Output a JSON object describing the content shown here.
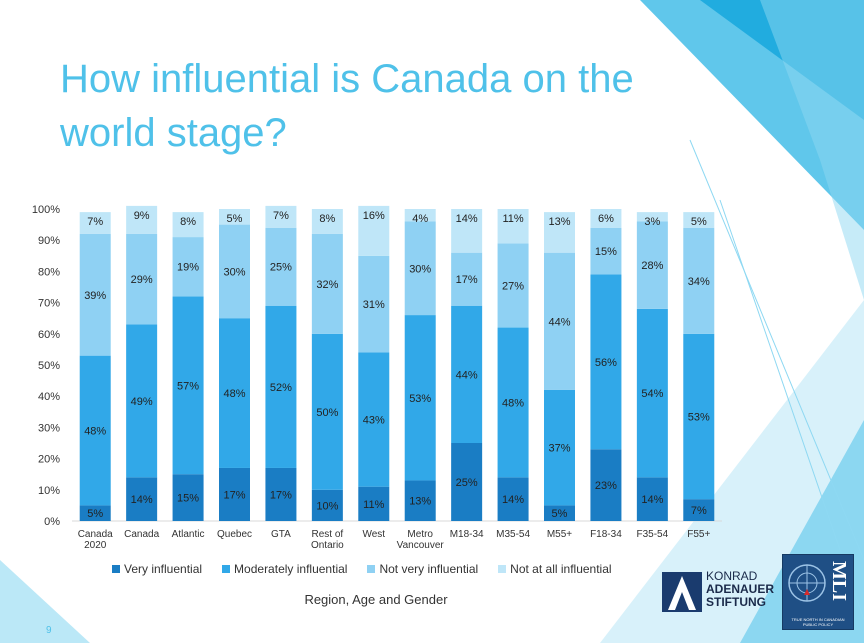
{
  "slide": {
    "title": "How influential is Canada on the world stage?",
    "page_number": "9",
    "x_axis_title": "Region, Age and Gender"
  },
  "logos": {
    "kas_line1": "KONRAD",
    "kas_line2": "ADENAUER",
    "kas_line3": "STIFTUNG",
    "mli_text": "MLI",
    "mli_tagline": "TRUE NORTH IN CANADIAN PUBLIC POLICY"
  },
  "colors": {
    "very": "#1a7dc4",
    "moderately": "#31a8e8",
    "not_very": "#8fd1f3",
    "not_at_all": "#bfe6f8",
    "title": "#4fc1e9"
  },
  "chart_data": {
    "type": "bar",
    "stacked": true,
    "categories": [
      "Canada 2020",
      "Canada",
      "Atlantic",
      "Quebec",
      "GTA",
      "Rest of Ontario",
      "West",
      "Metro Vancouver",
      "M18-34",
      "M35-54",
      "M55+",
      "F18-34",
      "F35-54",
      "F55+"
    ],
    "category_lines": [
      [
        "Canada",
        "2020"
      ],
      [
        "Canada"
      ],
      [
        "Atlantic"
      ],
      [
        "Quebec"
      ],
      [
        "GTA"
      ],
      [
        "Rest of",
        "Ontario"
      ],
      [
        "West"
      ],
      [
        "Metro",
        "Vancouver"
      ],
      [
        "M18-34"
      ],
      [
        "M35-54"
      ],
      [
        "M55+"
      ],
      [
        "F18-34"
      ],
      [
        "F35-54"
      ],
      [
        "F55+"
      ]
    ],
    "series": [
      {
        "name": "Very influential",
        "values": [
          5,
          14,
          15,
          17,
          17,
          10,
          11,
          13,
          25,
          14,
          5,
          23,
          14,
          7
        ],
        "labels": [
          "5%",
          "14%",
          "15%",
          "17%",
          "17%",
          "10%",
          "11%",
          "13%",
          "25%",
          "14%",
          "5%",
          "23%",
          "14%",
          "7%"
        ]
      },
      {
        "name": "Moderately influential",
        "values": [
          48,
          49,
          57,
          48,
          52,
          50,
          43,
          53,
          44,
          48,
          37,
          56,
          54,
          53
        ],
        "labels": [
          "48%",
          "49%",
          "57%",
          "48%",
          "52%",
          "50%",
          "43%",
          "53%",
          "44%",
          "48%",
          "37%",
          "56%",
          "54%",
          "53%"
        ]
      },
      {
        "name": "Not very influential",
        "values": [
          39,
          29,
          19,
          30,
          25,
          32,
          31,
          30,
          17,
          27,
          44,
          15,
          28,
          34
        ],
        "labels": [
          "39%",
          "29%",
          "19%",
          "30%",
          "25%",
          "32%",
          "31%",
          "30%",
          "17%",
          "27%",
          "44%",
          "15%",
          "28%",
          "34%"
        ]
      },
      {
        "name": "Not at all influential",
        "values": [
          7,
          9,
          8,
          5,
          7,
          8,
          16,
          4,
          14,
          11,
          13,
          6,
          3,
          5
        ],
        "labels": [
          "7%",
          "9%",
          "8%",
          "5%",
          "7%",
          "8%",
          "16%",
          "4%",
          "14%",
          "11%",
          "13%",
          "6%",
          "3%",
          "5%"
        ]
      }
    ],
    "y_ticks": [
      "0%",
      "10%",
      "20%",
      "30%",
      "40%",
      "50%",
      "60%",
      "70%",
      "80%",
      "90%",
      "100%"
    ],
    "ylim": [
      0,
      100
    ],
    "xlabel": "Region, Age and Gender",
    "ylabel": "",
    "legend_position": "bottom"
  }
}
